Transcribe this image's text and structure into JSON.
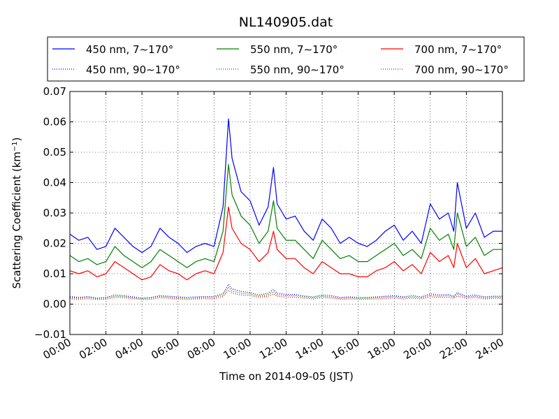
{
  "chart_data": {
    "type": "line",
    "title": "NL140905.dat",
    "xlabel": "Time on 2014-09-05 (JST)",
    "ylabel": "Scattering Coefficient (km",
    "ylabel_sup": "−1",
    "ylabel_close": ")",
    "x_unit": "hours",
    "xlim": [
      0,
      24
    ],
    "ylim": [
      -0.01,
      0.07
    ],
    "grid": true,
    "legend_position": "top (above plot)",
    "x_ticks": [
      {
        "value": 0,
        "label": "00:00"
      },
      {
        "value": 2,
        "label": "02:00"
      },
      {
        "value": 4,
        "label": "04:00"
      },
      {
        "value": 6,
        "label": "06:00"
      },
      {
        "value": 8,
        "label": "08:00"
      },
      {
        "value": 10,
        "label": "10:00"
      },
      {
        "value": 12,
        "label": "12:00"
      },
      {
        "value": 14,
        "label": "14:00"
      },
      {
        "value": 16,
        "label": "16:00"
      },
      {
        "value": 18,
        "label": "18:00"
      },
      {
        "value": 20,
        "label": "20:00"
      },
      {
        "value": 22,
        "label": "22:00"
      },
      {
        "value": 24,
        "label": "24:00"
      }
    ],
    "y_ticks": [
      {
        "value": -0.01,
        "label": "−0.01"
      },
      {
        "value": 0.0,
        "label": "0.00"
      },
      {
        "value": 0.01,
        "label": "0.01"
      },
      {
        "value": 0.02,
        "label": "0.02"
      },
      {
        "value": 0.03,
        "label": "0.03"
      },
      {
        "value": 0.04,
        "label": "0.04"
      },
      {
        "value": 0.05,
        "label": "0.05"
      },
      {
        "value": 0.06,
        "label": "0.06"
      },
      {
        "value": 0.07,
        "label": "0.07"
      }
    ],
    "x": [
      0.0,
      0.5,
      1.0,
      1.5,
      2.0,
      2.5,
      3.0,
      3.5,
      4.0,
      4.5,
      5.0,
      5.5,
      6.0,
      6.5,
      7.0,
      7.5,
      8.0,
      8.5,
      8.8,
      9.0,
      9.5,
      10.0,
      10.5,
      11.0,
      11.3,
      11.5,
      12.0,
      12.5,
      13.0,
      13.5,
      14.0,
      14.5,
      15.0,
      15.5,
      16.0,
      16.5,
      17.0,
      17.5,
      18.0,
      18.5,
      19.0,
      19.5,
      20.0,
      20.5,
      21.0,
      21.3,
      21.5,
      22.0,
      22.5,
      23.0,
      23.5,
      24.0
    ],
    "series": [
      {
        "name": "450 nm, 7∼170°",
        "color": "#0000ff",
        "style": "solid",
        "values": [
          0.023,
          0.021,
          0.022,
          0.018,
          0.019,
          0.025,
          0.022,
          0.019,
          0.017,
          0.019,
          0.025,
          0.022,
          0.02,
          0.017,
          0.019,
          0.02,
          0.019,
          0.032,
          0.061,
          0.048,
          0.037,
          0.034,
          0.026,
          0.032,
          0.045,
          0.033,
          0.028,
          0.029,
          0.024,
          0.021,
          0.028,
          0.025,
          0.02,
          0.022,
          0.02,
          0.019,
          0.021,
          0.024,
          0.026,
          0.021,
          0.024,
          0.02,
          0.033,
          0.028,
          0.03,
          0.024,
          0.04,
          0.025,
          0.03,
          0.022,
          0.024,
          0.024
        ]
      },
      {
        "name": "450 nm, 90∼170°",
        "color": "#0000ff",
        "style": "dotted",
        "values": [
          0.0025,
          0.0022,
          0.0025,
          0.002,
          0.0022,
          0.003,
          0.0028,
          0.0024,
          0.002,
          0.0022,
          0.0028,
          0.0026,
          0.0024,
          0.0022,
          0.0024,
          0.0025,
          0.0025,
          0.0035,
          0.0065,
          0.005,
          0.0042,
          0.0038,
          0.003,
          0.0036,
          0.0048,
          0.0036,
          0.0032,
          0.0032,
          0.0027,
          0.0024,
          0.003,
          0.0028,
          0.0022,
          0.0024,
          0.0022,
          0.0022,
          0.0024,
          0.0026,
          0.0028,
          0.0024,
          0.0028,
          0.0024,
          0.0034,
          0.003,
          0.0032,
          0.0026,
          0.0038,
          0.0026,
          0.003,
          0.0024,
          0.0026,
          0.0026
        ]
      },
      {
        "name": "550 nm, 7∼170°",
        "color": "#008000",
        "style": "solid",
        "values": [
          0.016,
          0.014,
          0.015,
          0.013,
          0.014,
          0.019,
          0.016,
          0.014,
          0.012,
          0.014,
          0.018,
          0.016,
          0.014,
          0.012,
          0.014,
          0.015,
          0.014,
          0.024,
          0.046,
          0.036,
          0.029,
          0.026,
          0.02,
          0.024,
          0.034,
          0.025,
          0.021,
          0.021,
          0.018,
          0.015,
          0.021,
          0.018,
          0.015,
          0.016,
          0.014,
          0.014,
          0.016,
          0.018,
          0.02,
          0.016,
          0.018,
          0.015,
          0.025,
          0.021,
          0.023,
          0.018,
          0.03,
          0.019,
          0.022,
          0.016,
          0.018,
          0.018
        ]
      },
      {
        "name": "550 nm, 90∼170°",
        "color": "#008000",
        "style": "dotted",
        "values": [
          0.0022,
          0.002,
          0.0022,
          0.0018,
          0.002,
          0.0026,
          0.0025,
          0.0021,
          0.0018,
          0.002,
          0.0025,
          0.0023,
          0.0021,
          0.0019,
          0.0021,
          0.0022,
          0.0022,
          0.003,
          0.0055,
          0.0043,
          0.0036,
          0.0033,
          0.0026,
          0.0031,
          0.0041,
          0.0031,
          0.0028,
          0.0028,
          0.0024,
          0.0021,
          0.0026,
          0.0024,
          0.0019,
          0.0021,
          0.0019,
          0.0019,
          0.0021,
          0.0023,
          0.0025,
          0.0021,
          0.0024,
          0.0021,
          0.0029,
          0.0026,
          0.0028,
          0.0023,
          0.0033,
          0.0023,
          0.0026,
          0.0021,
          0.0023,
          0.0023
        ]
      },
      {
        "name": "700 nm, 7∼170°",
        "color": "#ff0000",
        "style": "solid",
        "values": [
          0.011,
          0.01,
          0.011,
          0.009,
          0.01,
          0.014,
          0.012,
          0.01,
          0.008,
          0.009,
          0.013,
          0.011,
          0.01,
          0.008,
          0.01,
          0.011,
          0.01,
          0.017,
          0.032,
          0.025,
          0.02,
          0.018,
          0.014,
          0.017,
          0.024,
          0.018,
          0.015,
          0.015,
          0.012,
          0.01,
          0.014,
          0.012,
          0.01,
          0.01,
          0.009,
          0.009,
          0.011,
          0.012,
          0.014,
          0.011,
          0.013,
          0.01,
          0.017,
          0.014,
          0.016,
          0.012,
          0.02,
          0.012,
          0.015,
          0.01,
          0.011,
          0.012
        ]
      },
      {
        "name": "700 nm, 90∼170°",
        "color": "#ff0000",
        "style": "dotted",
        "values": [
          0.0018,
          0.0016,
          0.0018,
          0.0015,
          0.0016,
          0.0022,
          0.0021,
          0.0018,
          0.0015,
          0.0016,
          0.0021,
          0.0019,
          0.0017,
          0.0015,
          0.0017,
          0.0018,
          0.0018,
          0.0025,
          0.0045,
          0.0036,
          0.003,
          0.0028,
          0.0022,
          0.0026,
          0.0034,
          0.0026,
          0.0023,
          0.0023,
          0.002,
          0.0017,
          0.0022,
          0.002,
          0.0016,
          0.0017,
          0.0016,
          0.0016,
          0.0017,
          0.0019,
          0.0021,
          0.0017,
          0.002,
          0.0017,
          0.0024,
          0.0022,
          0.0023,
          0.0019,
          0.0027,
          0.0019,
          0.0022,
          0.0017,
          0.0019,
          0.0019
        ]
      }
    ]
  }
}
